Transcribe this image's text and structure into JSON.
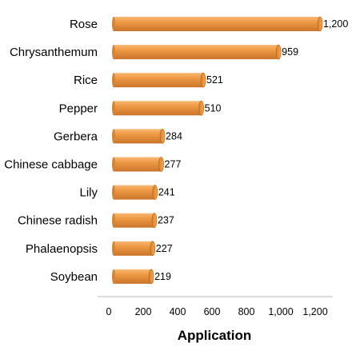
{
  "chart_data": {
    "type": "bar",
    "orientation": "horizontal",
    "style": "3d-cylinder",
    "categories": [
      "Rose",
      "Chrysanthemum",
      "Rice",
      "Pepper",
      "Gerbera",
      "Chinese cabbage",
      "Lily",
      "Chinese radish",
      "Phalaenopsis",
      "Soybean"
    ],
    "values": [
      1200,
      959,
      521,
      510,
      284,
      277,
      241,
      237,
      227,
      219
    ],
    "value_labels": [
      "1,200",
      "959",
      "521",
      "510",
      "284",
      "277",
      "241",
      "237",
      "227",
      "219"
    ],
    "xlabel": "Application",
    "xlim": [
      0,
      1200
    ],
    "xticks": [
      0,
      200,
      400,
      600,
      800,
      1000,
      1200
    ],
    "xtick_labels": [
      "0",
      "200",
      "400",
      "600",
      "800",
      "1,000",
      "1,200"
    ],
    "grid": false,
    "bar_color": "#E88D34",
    "bar_dark": "#B5651D",
    "bar_light": "#F8B06A"
  }
}
